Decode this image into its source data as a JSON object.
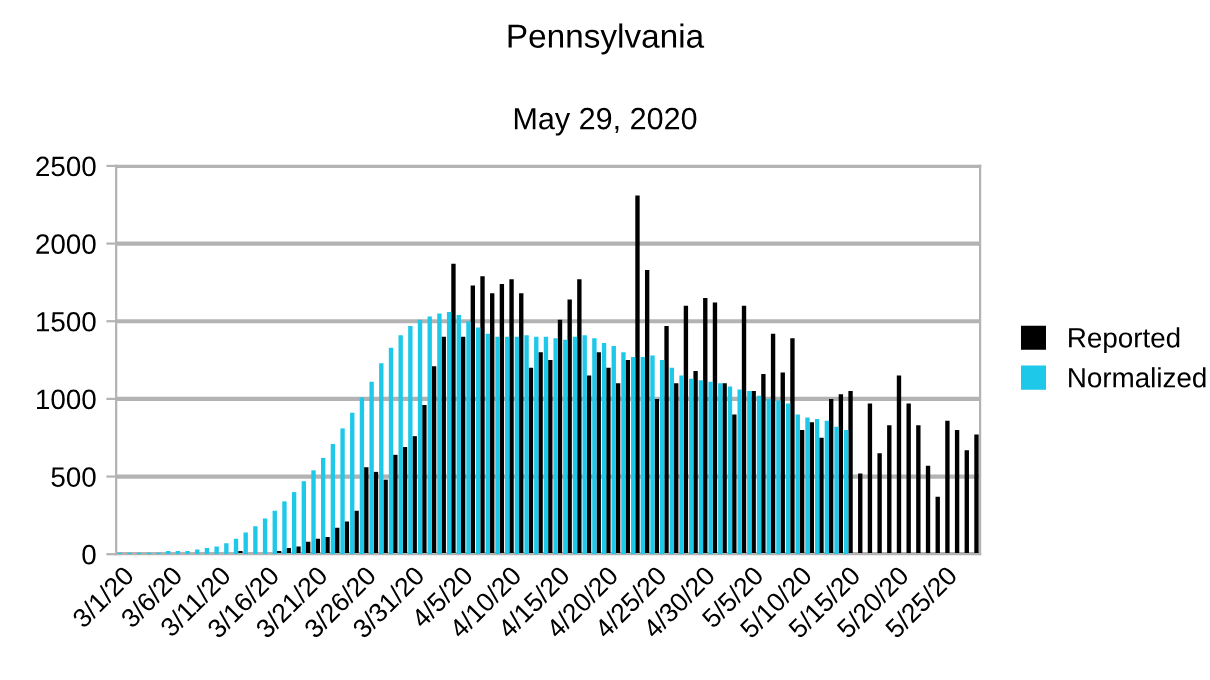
{
  "chart_data": {
    "type": "bar",
    "title": "Pennsylvania",
    "subtitle": "May 29, 2020",
    "categories": [
      "3/1/20",
      null,
      null,
      null,
      null,
      "3/6/20",
      null,
      null,
      null,
      null,
      "3/11/20",
      null,
      null,
      null,
      null,
      "3/16/20",
      null,
      null,
      null,
      null,
      "3/21/20",
      null,
      null,
      null,
      null,
      "3/26/20",
      null,
      null,
      null,
      null,
      "3/31/20",
      null,
      null,
      null,
      null,
      "4/5/20",
      null,
      null,
      null,
      null,
      "4/10/20",
      null,
      null,
      null,
      null,
      "4/15/20",
      null,
      null,
      null,
      null,
      "4/20/20",
      null,
      null,
      null,
      null,
      "4/25/20",
      null,
      null,
      null,
      null,
      "4/30/20",
      null,
      null,
      null,
      null,
      "5/5/20",
      null,
      null,
      null,
      null,
      "5/10/20",
      null,
      null,
      null,
      null,
      "5/15/20",
      null,
      null,
      null,
      null,
      "5/20/20",
      null,
      null,
      null,
      null,
      "5/25/20",
      null,
      null,
      null
    ],
    "series": [
      {
        "name": "Reported",
        "color": "#000000",
        "values": [
          0,
          0,
          0,
          0,
          0,
          0,
          0,
          0,
          0,
          0,
          0,
          null,
          20,
          null,
          null,
          null,
          20,
          40,
          50,
          80,
          100,
          110,
          170,
          210,
          280,
          560,
          530,
          480,
          640,
          690,
          760,
          960,
          1210,
          1400,
          1870,
          1400,
          1730,
          1790,
          1680,
          1740,
          1770,
          1680,
          1200,
          1300,
          1250,
          1510,
          1640,
          1770,
          1150,
          1300,
          1200,
          1100,
          1250,
          2310,
          1830,
          1000,
          1470,
          1100,
          1600,
          1180,
          1650,
          1620,
          1100,
          900,
          1600,
          1050,
          1160,
          1420,
          1170,
          1390,
          800,
          850,
          750,
          1000,
          1030,
          1050,
          520,
          970,
          650,
          830,
          1150,
          970,
          830,
          570,
          370,
          860,
          800,
          670,
          770
        ]
      },
      {
        "name": "Normalized",
        "color": "#1ec8e8",
        "values": [
          10,
          10,
          10,
          10,
          10,
          20,
          20,
          20,
          30,
          40,
          50,
          70,
          100,
          140,
          180,
          230,
          280,
          340,
          400,
          470,
          540,
          620,
          710,
          810,
          910,
          1010,
          1110,
          1230,
          1330,
          1410,
          1470,
          1510,
          1530,
          1550,
          1560,
          1540,
          1500,
          1460,
          1420,
          1400,
          1400,
          1400,
          1410,
          1400,
          1400,
          1390,
          1380,
          1400,
          1410,
          1390,
          1360,
          1340,
          1300,
          1270,
          1270,
          1280,
          1250,
          1200,
          1150,
          1130,
          1120,
          1110,
          1100,
          1080,
          1060,
          1050,
          1020,
          1000,
          990,
          970,
          900,
          880,
          870,
          860,
          820,
          800,
          null,
          null,
          null,
          null,
          null,
          null,
          null,
          null,
          null,
          null,
          null,
          null,
          null
        ]
      }
    ],
    "ylim": [
      0,
      2500
    ],
    "yticks": [
      0,
      500,
      1000,
      1500,
      2000,
      2500
    ],
    "grid": "y",
    "legend": "right"
  }
}
